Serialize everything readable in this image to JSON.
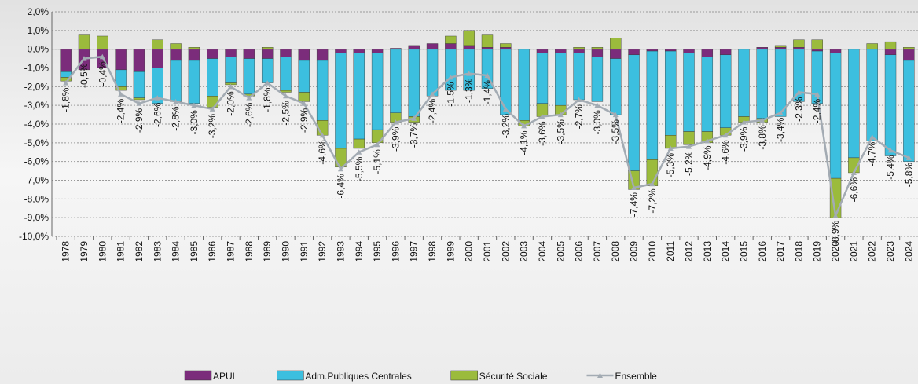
{
  "chart_data": {
    "type": "stacked-bar-line",
    "categories": [
      "1978",
      "1979",
      "1980",
      "1981",
      "1982",
      "1983",
      "1984",
      "1985",
      "1986",
      "1987",
      "1988",
      "1989",
      "1990",
      "1991",
      "1992",
      "1993",
      "1994",
      "1995",
      "1996",
      "1997",
      "1998",
      "1999",
      "2000",
      "2001",
      "2002",
      "2003",
      "2004",
      "2005",
      "2006",
      "2007",
      "2008",
      "2009",
      "2010",
      "2011",
      "2012",
      "2013",
      "2014",
      "2015",
      "2016",
      "2017",
      "2018",
      "2019",
      "2020",
      "2021",
      "2022",
      "2023",
      "2024"
    ],
    "series": [
      {
        "name": "APUL",
        "type": "bar",
        "color": "#7b2c7b",
        "values": [
          -1.2,
          -1.1,
          -1.0,
          -1.1,
          -1.2,
          -1.0,
          -0.6,
          -0.6,
          -0.5,
          -0.4,
          -0.5,
          -0.5,
          -0.4,
          -0.6,
          -0.6,
          -0.2,
          -0.2,
          -0.2,
          0.05,
          0.2,
          0.3,
          0.3,
          0.2,
          0.1,
          0.1,
          0,
          -0.2,
          -0.2,
          -0.2,
          -0.4,
          -0.5,
          -0.3,
          -0.1,
          -0.1,
          -0.2,
          -0.4,
          -0.3,
          0,
          0.1,
          0.1,
          0.1,
          -0.1,
          -0.2,
          0,
          0,
          -0.3,
          -0.6
        ]
      },
      {
        "name": "Adm.Publiques Centrales",
        "type": "bar",
        "color": "#3cbfdf",
        "values": [
          -0.3,
          0,
          0,
          -0.9,
          -1.4,
          -1.9,
          -2.2,
          -2.3,
          -2.0,
          -1.4,
          -1.9,
          -1.3,
          -1.8,
          -1.7,
          -3.2,
          -5.1,
          -4.6,
          -4.1,
          -3.4,
          -3.6,
          -2.5,
          -2.2,
          -2.2,
          -2.1,
          -3.5,
          -3.8,
          -2.7,
          -2.8,
          -2.5,
          -2.4,
          -3.0,
          -6.2,
          -5.8,
          -4.5,
          -4.2,
          -4.0,
          -3.9,
          -3.6,
          -3.7,
          -3.6,
          -2.8,
          -2.8,
          -6.7,
          -5.8,
          -4.9,
          -5.4,
          -5.4
        ]
      },
      {
        "name": "Sécurité Sociale",
        "type": "bar",
        "color": "#9bbb3c",
        "values": [
          -0.2,
          0.8,
          0.7,
          -0.2,
          -0.1,
          0.5,
          0.3,
          0.1,
          -0.6,
          -0.1,
          -0.1,
          0.1,
          -0.1,
          -0.5,
          -0.8,
          -1.0,
          -0.5,
          -0.7,
          -0.5,
          -0.3,
          0,
          0.4,
          0.8,
          0.7,
          0.2,
          -0.3,
          -0.7,
          -0.5,
          0.1,
          0.1,
          0.6,
          -1.0,
          -1.4,
          -0.7,
          -0.7,
          -0.6,
          -0.4,
          -0.3,
          -0.2,
          0.1,
          0.4,
          0.5,
          -2.1,
          -0.8,
          0.3,
          0.4,
          0.1
        ]
      },
      {
        "name": "Ensemble",
        "type": "line",
        "color": "#a3abb3",
        "values": [
          -1.8,
          -0.5,
          -0.4,
          -2.4,
          -2.9,
          -2.6,
          -2.8,
          -3.0,
          -3.2,
          -2.0,
          -2.6,
          -1.8,
          -2.5,
          -2.9,
          -4.6,
          -6.4,
          -5.5,
          -5.1,
          -3.9,
          -3.7,
          -2.4,
          -1.5,
          -1.3,
          -1.4,
          -3.2,
          -4.1,
          -3.6,
          -3.5,
          -2.7,
          -3.0,
          -3.5,
          -7.4,
          -7.2,
          -5.3,
          -5.2,
          -4.9,
          -4.6,
          -3.9,
          -3.8,
          -3.4,
          -2.3,
          -2.4,
          -8.9,
          -6.6,
          -4.7,
          -5.4,
          -5.8
        ],
        "value_labels": [
          "-1,8%",
          "-0,5%",
          "-0,4%",
          "-2,4%",
          "-2,9%",
          "-2,6%",
          "-2,8%",
          "-3,0%",
          "-3,2%",
          "-2,0%",
          "-2,6%",
          "-1,8%",
          "-2,5%",
          "-2,9%",
          "-4,6%",
          "-6,4%",
          "-5,5%",
          "-5,1%",
          "-3,9%",
          "-3,7%",
          "-2,4%",
          "-1,5%",
          "-1,3%",
          "-1,4%",
          "-3,2%",
          "-4,1%",
          "-3,6%",
          "-3,5%",
          "-2,7%",
          "-3,0%",
          "-3,5%",
          "-7,4%",
          "-7,2%",
          "-5,3%",
          "-5,2%",
          "-4,9%",
          "-4,6%",
          "-3,9%",
          "-3,8%",
          "-3,4%",
          "-2,3%",
          "-2,4%",
          "-8,9%",
          "-6,6%",
          "-4,7%",
          "-5,4%",
          "-5,8%"
        ]
      }
    ],
    "ylim": [
      -10,
      2
    ],
    "yticks": [
      {
        "value": -10,
        "label": "-10,0%"
      },
      {
        "value": -9,
        "label": "-9,0%"
      },
      {
        "value": -8,
        "label": "-8,0%"
      },
      {
        "value": -7,
        "label": "-7,0%"
      },
      {
        "value": -6,
        "label": "-6,0%"
      },
      {
        "value": -5,
        "label": "-5,0%"
      },
      {
        "value": -4,
        "label": "-4,0%"
      },
      {
        "value": -3,
        "label": "-3,0%"
      },
      {
        "value": -2,
        "label": "-2,0%"
      },
      {
        "value": -1,
        "label": "-1,0%"
      },
      {
        "value": 0,
        "label": "0,0%"
      },
      {
        "value": 1,
        "label": "1,0%"
      },
      {
        "value": 2,
        "label": "2,0%"
      }
    ],
    "grid": true,
    "legend": "bottom"
  }
}
